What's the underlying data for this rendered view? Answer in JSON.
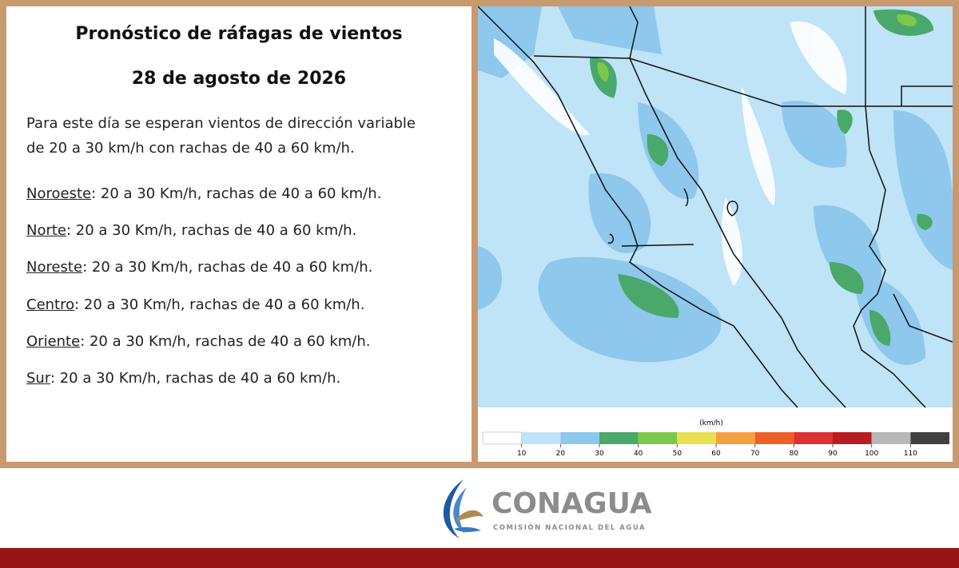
{
  "header": {
    "title": "Pronóstico de ráfagas de vientos",
    "date": "28 de agosto de 2026"
  },
  "intro": [
    "Para este día se esperan vientos de dirección variable",
    "de 20 a 30 km/h con rachas de 40 a 60 km/h."
  ],
  "regions": [
    {
      "name": "Noroeste",
      "text": ":  20 a 30 Km/h, rachas de 40 a 60 km/h."
    },
    {
      "name": "Norte",
      "text": ": 20 a 30 Km/h, rachas de 40 a 60 km/h."
    },
    {
      "name": "Noreste",
      "text": ": 20 a 30 Km/h, rachas de 40 a 60 km/h."
    },
    {
      "name": "Centro",
      "text": ":  20 a 30 Km/h, rachas de 40 a 60 km/h."
    },
    {
      "name": "Oriente",
      "text": ":  20 a 30 Km/h, rachas de 40 a 60 km/h."
    },
    {
      "name": "Sur",
      "text": ":  20 a 30 Km/h, rachas de 40 a 60 km/h."
    }
  ],
  "colorbar": {
    "unit": "(km/h)",
    "ticks": [
      10,
      20,
      30,
      40,
      50,
      60,
      70,
      80,
      90,
      100,
      110
    ],
    "colors": [
      "#ffffff",
      "#bfe3f7",
      "#8ec8ec",
      "#4aa86a",
      "#7cc84a",
      "#e8e050",
      "#f5a040",
      "#ee6028",
      "#dd3030",
      "#b81c22",
      "#b8b8b8",
      "#404040"
    ]
  },
  "logo": {
    "name": "CONAGUA",
    "subtitle": "COMISIÓN NACIONAL DEL AGUA"
  }
}
